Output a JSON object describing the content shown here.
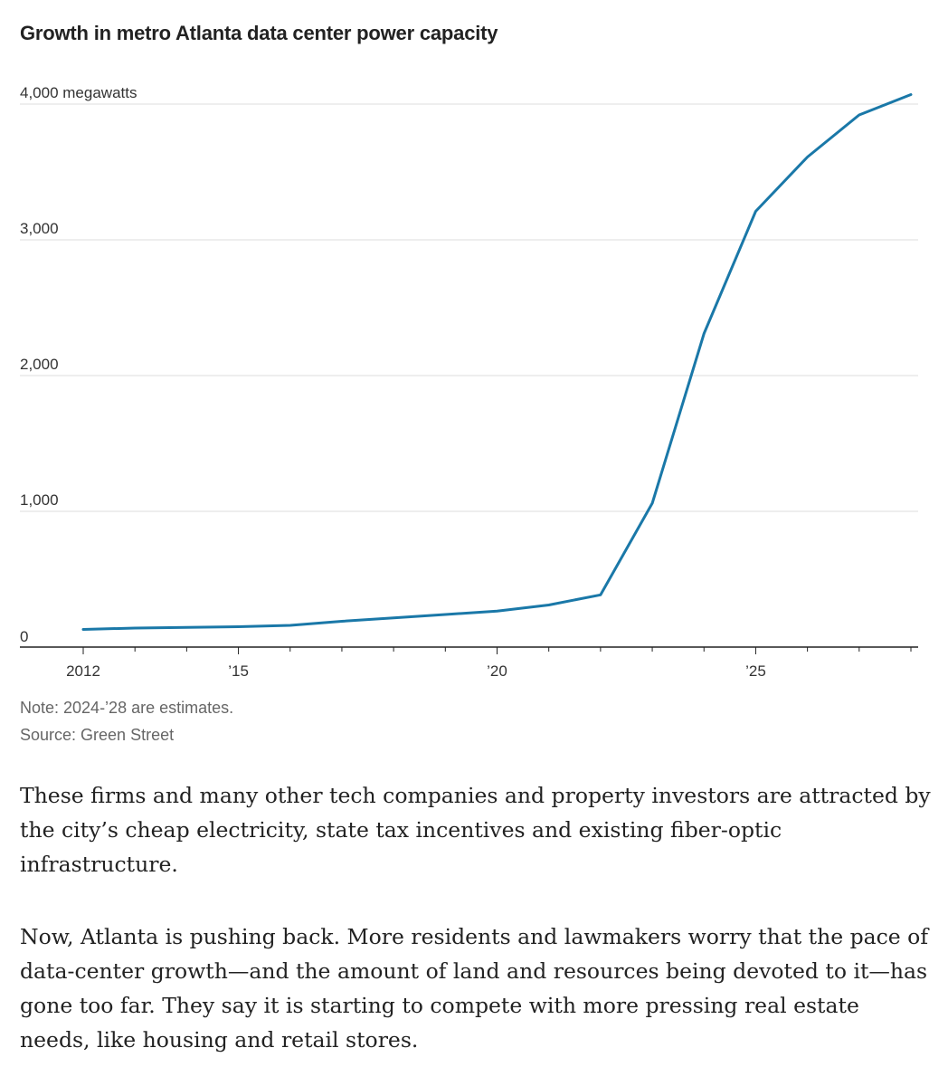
{
  "chart_data": {
    "type": "line",
    "title": "Growth in metro Atlanta data center power capacity",
    "y_unit_label": "4,000 megawatts",
    "ylim": [
      0,
      4000
    ],
    "xlim": [
      2012,
      2028
    ],
    "y_ticks": [
      {
        "value": 0,
        "label": "0"
      },
      {
        "value": 1000,
        "label": "1,000"
      },
      {
        "value": 2000,
        "label": "2,000"
      },
      {
        "value": 3000,
        "label": "3,000"
      },
      {
        "value": 4000,
        "label": "4,000 megawatts"
      }
    ],
    "x_ticks": [
      {
        "value": 2012,
        "label": "2012"
      },
      {
        "value": 2015,
        "label": "’15"
      },
      {
        "value": 2020,
        "label": "’20"
      },
      {
        "value": 2025,
        "label": "’25"
      }
    ],
    "grid": "horizontal",
    "line_color": "#1a78a8",
    "series": [
      {
        "x": [
          2012,
          2013,
          2014,
          2015,
          2016,
          2017,
          2018,
          2019,
          2020,
          2021,
          2022,
          2023,
          2024,
          2025,
          2026,
          2027,
          2028
        ],
        "values": [
          130,
          140,
          145,
          150,
          160,
          190,
          215,
          240,
          265,
          310,
          385,
          1060,
          2310,
          3210,
          3610,
          3920,
          4070
        ]
      }
    ]
  },
  "notes": {
    "note": "Note: 2024-’28 are estimates.",
    "source": "Source: Green Street"
  },
  "article": {
    "paragraph_1": "These firms and many other tech companies and property investors are attracted by the city’s cheap electricity, state tax incentives and existing fiber-optic infrastructure.",
    "paragraph_2": "Now, Atlanta is pushing back. More residents and lawmakers worry that the pace of data-center growth—and the amount of land and resources being devoted to it—has gone too far. They say it is starting to compete with more pressing real estate needs, like housing and retail stores."
  }
}
